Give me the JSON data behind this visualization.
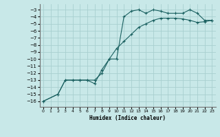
{
  "xlabel": "Humidex (Indice chaleur)",
  "background_color": "#c8e8e8",
  "grid_color": "#a8d0d0",
  "line_color": "#1a6060",
  "xlim": [
    -0.5,
    23.5
  ],
  "ylim": [
    -16.8,
    -2.2
  ],
  "xticks": [
    0,
    1,
    2,
    3,
    4,
    5,
    6,
    7,
    8,
    9,
    10,
    11,
    12,
    13,
    14,
    15,
    16,
    17,
    18,
    19,
    20,
    21,
    22,
    23
  ],
  "yticks": [
    -3,
    -4,
    -5,
    -6,
    -7,
    -8,
    -9,
    -10,
    -11,
    -12,
    -13,
    -14,
    -15,
    -16
  ],
  "humidex_x": [
    0,
    2,
    3,
    4,
    5,
    6,
    7,
    8,
    9,
    10,
    11,
    12,
    13,
    14,
    15,
    16,
    17,
    18,
    19,
    20,
    21,
    22,
    23
  ],
  "humidex_y": [
    -16,
    -15,
    -13,
    -13,
    -13,
    -13,
    -13,
    -12,
    -10,
    -10,
    -4,
    -3.2,
    -3,
    -3.5,
    -3,
    -3.2,
    -3.5,
    -3.5,
    -3.5,
    -3,
    -3.5,
    -4.5,
    -4.5
  ],
  "diag_x": [
    0,
    2,
    3,
    4,
    5,
    6,
    7,
    8,
    9,
    10,
    11,
    12,
    13,
    14,
    15,
    16,
    17,
    18,
    19,
    20,
    21,
    22,
    23
  ],
  "diag_y": [
    -16,
    -15,
    -13,
    -13,
    -13,
    -13,
    -13.5,
    -11.5,
    -10,
    -8.5,
    -7.5,
    -6.5,
    -5.5,
    -5.0,
    -4.5,
    -4.2,
    -4.2,
    -4.2,
    -4.3,
    -4.5,
    -4.8,
    -4.7,
    -4.5
  ]
}
